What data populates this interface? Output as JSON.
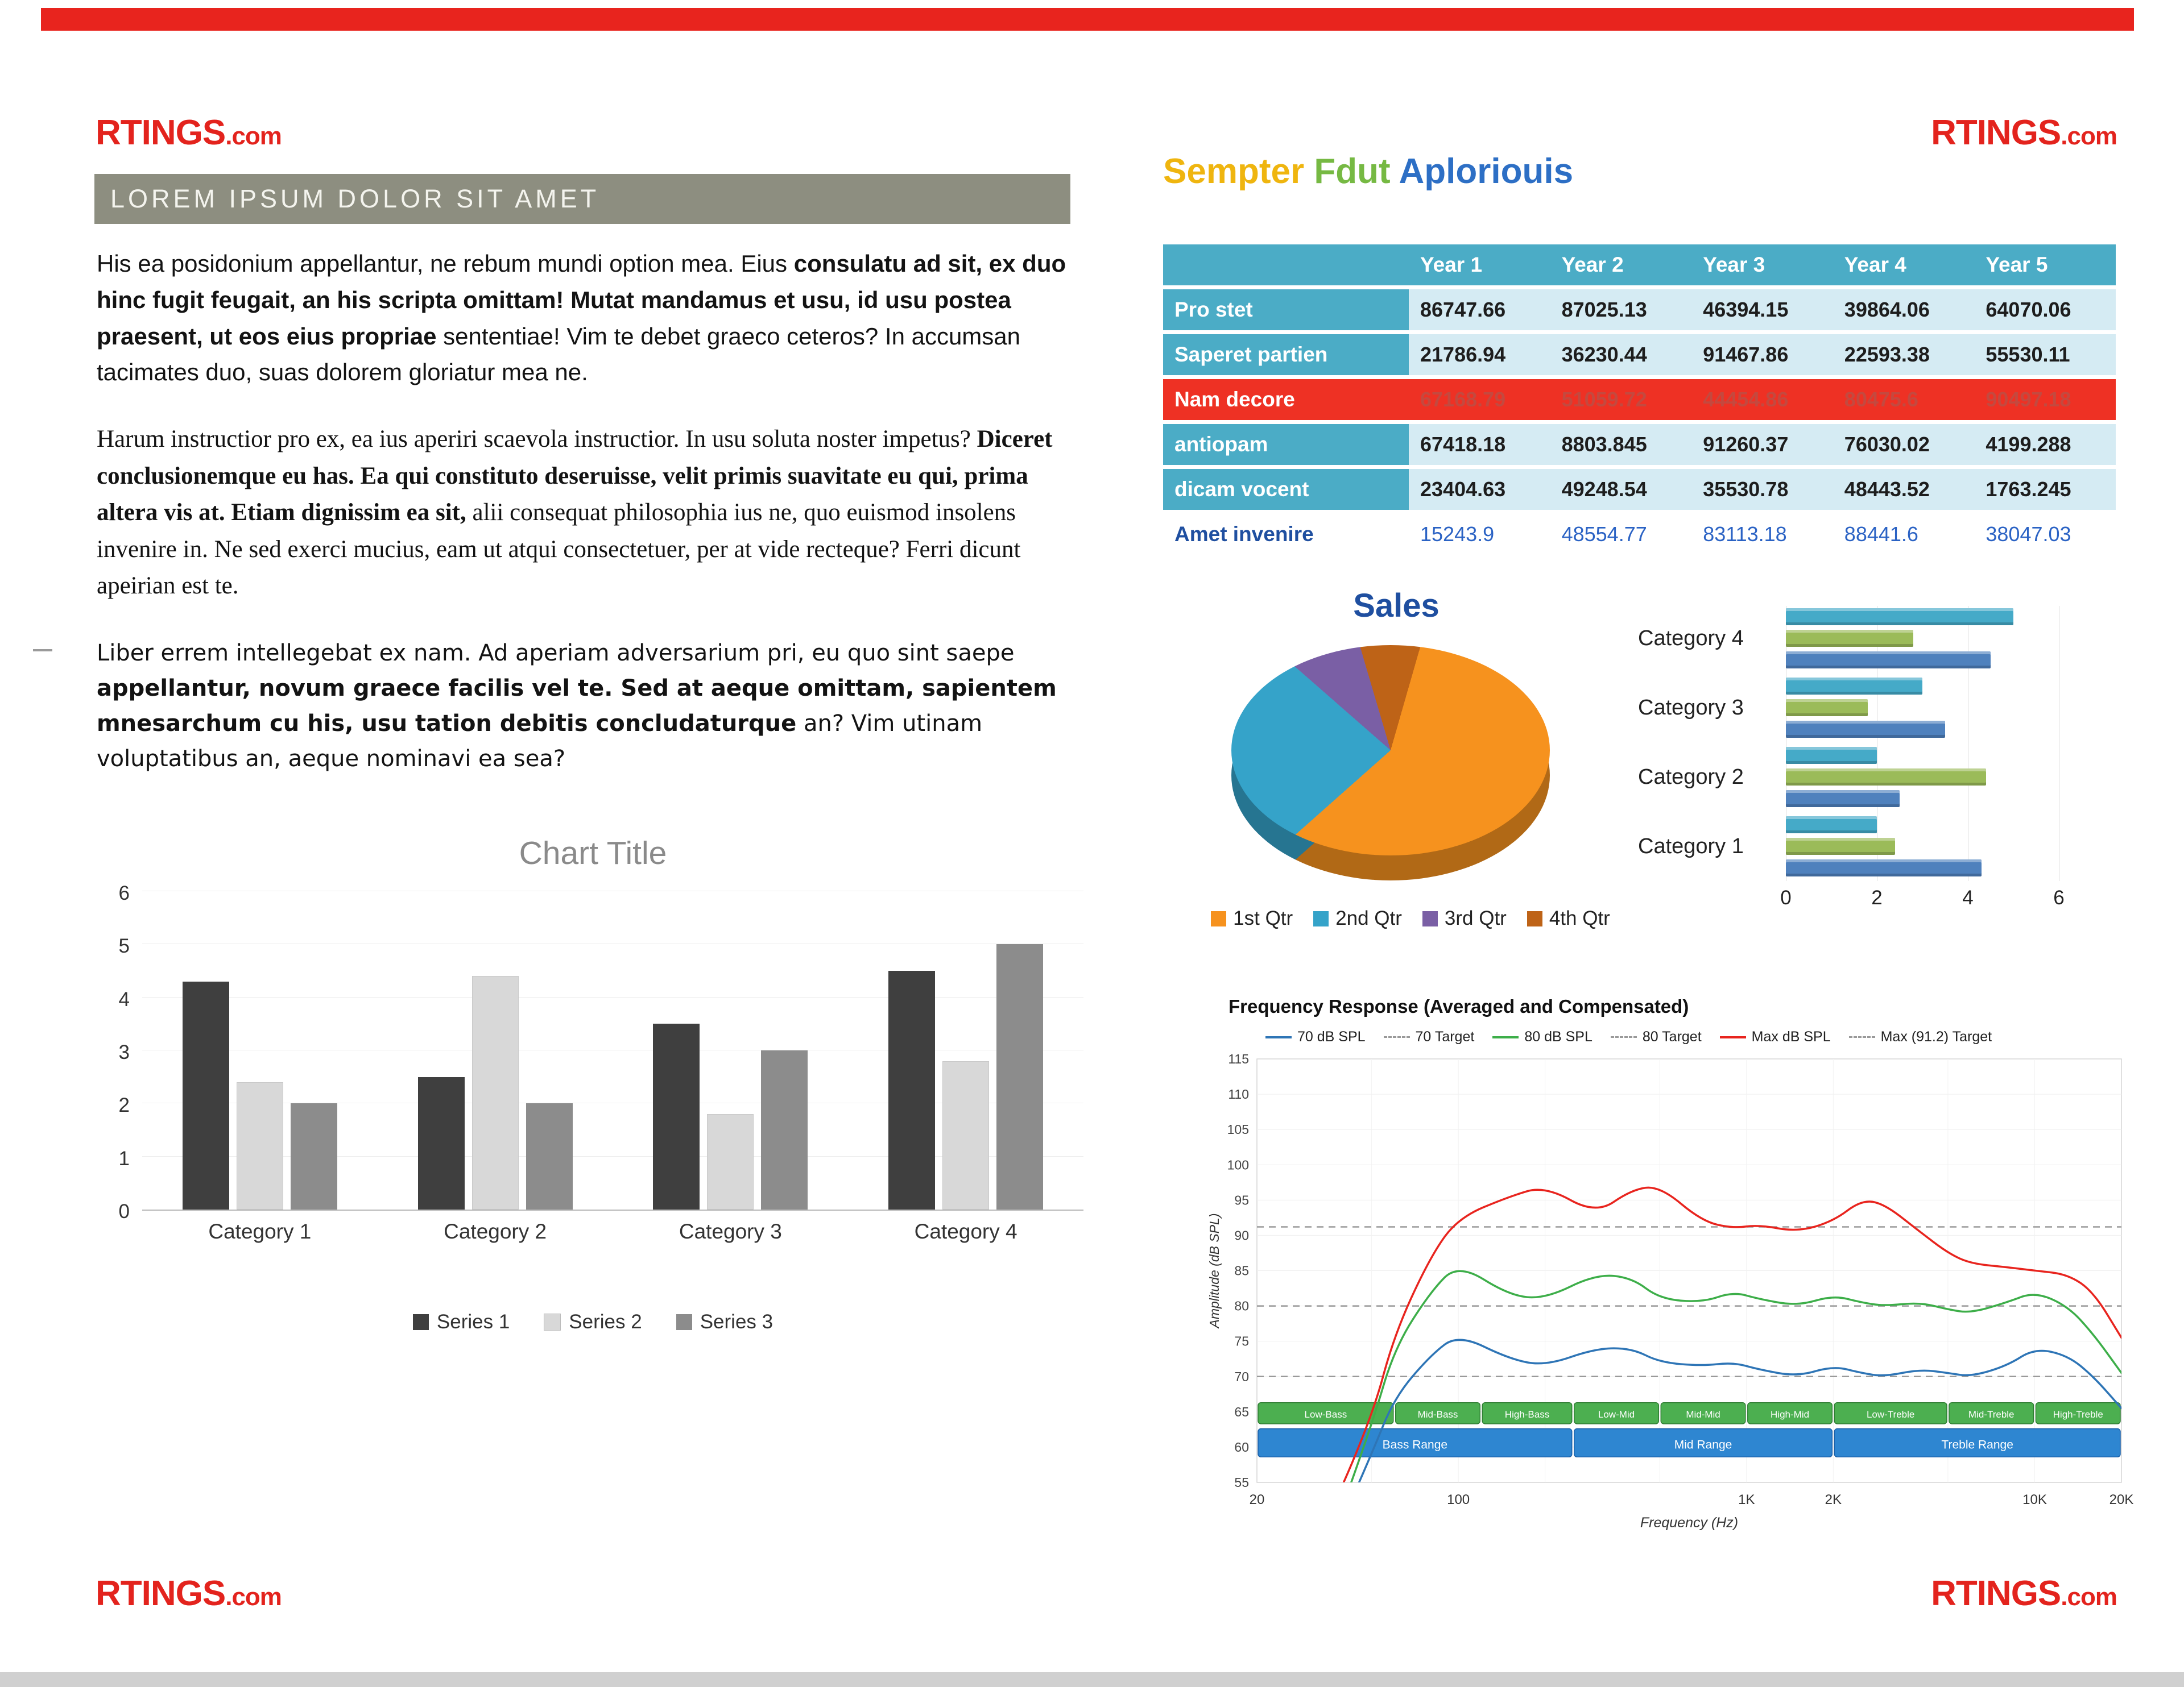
{
  "page": {
    "logo": {
      "main": "RTINGS",
      "suffix": ".com"
    },
    "colors": {
      "accent_red": "#E8241E",
      "table_teal": "#4BACC6",
      "table_red": "#EE3124",
      "heading_blue": "#1F4FA0"
    }
  },
  "left": {
    "header_bar": "LOREM IPSUM DOLOR SIT AMET",
    "paragraphs": [
      [
        {
          "t": "His ea posidonium appellantur, ne rebum mundi option mea. Eius ",
          "b": false
        },
        {
          "t": "consulatu ad sit, ex duo hinc fugit feugait, an his scripta omittam! Mutat mandamus et usu, id usu postea praesent, ut eos eius propriae",
          "b": true
        },
        {
          "t": " sententiae! Vim te debet graeco ceteros? In accumsan tacimates duo, suas dolorem gloriatur mea ne.",
          "b": false
        }
      ],
      [
        {
          "t": "Harum instructior pro ex, ea ius aperiri scaevola instructior. In usu soluta noster impetus? ",
          "b": false
        },
        {
          "t": "Diceret conclusionemque eu has. Ea qui constituto deseruisse, velit primis suavitate eu qui, prima altera vis at. Etiam dignissim ea sit,",
          "b": true
        },
        {
          "t": " alii consequat philosophia ius ne, quo euismod insolens invenire in. Ne sed exerci mucius, eam ut atqui consectetuer, per at vide recteque? Ferri dicunt apeirian est te.",
          "b": false
        }
      ],
      [
        {
          "t": "Liber errem intellegebat ex nam. Ad aperiam adversarium pri, eu quo sint saepe ",
          "b": false
        },
        {
          "t": "appellantur, novum graece facilis vel te. Sed at aeque omittam, sapientem mnesarchum cu his, usu tation debitis concludaturque",
          "b": true
        },
        {
          "t": " an? Vim utinam voluptatibus an, aeque nominavi ea sea?",
          "b": false
        }
      ]
    ]
  },
  "right": {
    "heading": {
      "word1": "Sempter",
      "word2": "Fdut",
      "word3": "Aploriouis"
    },
    "table": {
      "year_headers": [
        "Year 1",
        "Year 2",
        "Year 3",
        "Year 4",
        "Year 5"
      ],
      "rows": [
        {
          "label": "Pro stet",
          "style": "normal",
          "values": [
            "86747.66",
            "87025.13",
            "46394.15",
            "39864.06",
            "64070.06"
          ]
        },
        {
          "label": "Saperet partien",
          "style": "normal",
          "values": [
            "21786.94",
            "36230.44",
            "91467.86",
            "22593.38",
            "55530.11"
          ]
        },
        {
          "label": "Nam decore",
          "style": "red",
          "values": [
            "67168.79",
            "51059.72",
            "44454.86",
            "80475.6",
            "90497.18"
          ]
        },
        {
          "label": "antiopam",
          "style": "normal",
          "values": [
            "67418.18",
            "8803.845",
            "91260.37",
            "76030.02",
            "4199.288"
          ]
        },
        {
          "label": "dicam vocent",
          "style": "normal",
          "values": [
            "23404.63",
            "49248.54",
            "35530.78",
            "48443.52",
            "1763.245"
          ]
        },
        {
          "label": "Amet invenire",
          "style": "blue",
          "values": [
            "15243.9",
            "48554.77",
            "83113.18",
            "88441.6",
            "38047.03"
          ]
        }
      ]
    }
  },
  "chart_data": [
    {
      "id": "left_bar",
      "type": "bar",
      "title": "Chart Title",
      "categories": [
        "Category 1",
        "Category 2",
        "Category 3",
        "Category 4"
      ],
      "series": [
        {
          "name": "Series 1",
          "color": "#3F3F3F",
          "values": [
            4.3,
            2.5,
            3.5,
            4.5
          ]
        },
        {
          "name": "Series 2",
          "color": "#D8D8D8",
          "values": [
            2.4,
            4.4,
            1.8,
            2.8
          ]
        },
        {
          "name": "Series 3",
          "color": "#8C8C8C",
          "values": [
            2,
            2,
            3,
            5
          ]
        }
      ],
      "ylim": [
        0,
        6
      ],
      "yticks": [
        0,
        1,
        2,
        3,
        4,
        5,
        6
      ],
      "grid": true,
      "legend_position": "bottom"
    },
    {
      "id": "sales_pie",
      "type": "pie",
      "title": "Sales",
      "start_angle": 16,
      "slices": [
        {
          "name": "1st Qtr",
          "value": 59,
          "color": "#F6921E"
        },
        {
          "name": "2nd Qtr",
          "value": 23,
          "color": "#35A3C9"
        },
        {
          "name": "3rd Qtr",
          "value": 9,
          "color": "#7A5FA5"
        },
        {
          "name": "4th Qtr",
          "value": 9,
          "color": "#BE6317"
        }
      ],
      "legend_position": "bottom"
    },
    {
      "id": "right_hbar",
      "type": "bar",
      "orientation": "horizontal",
      "categories": [
        "Category 1",
        "Category 2",
        "Category 3",
        "Category 4"
      ],
      "series": [
        {
          "name": "Series 1",
          "color": "#4F81BD",
          "values": [
            4.3,
            2.5,
            3.5,
            4.5
          ]
        },
        {
          "name": "Series 2",
          "color": "#9BBB59",
          "values": [
            2.4,
            4.4,
            1.8,
            2.8
          ]
        },
        {
          "name": "Series 3",
          "color": "#45AAC8",
          "values": [
            2,
            2,
            3,
            5
          ]
        }
      ],
      "xlim": [
        0,
        6
      ],
      "xticks": [
        0,
        2,
        4,
        6
      ],
      "grid": true
    },
    {
      "id": "freq_response",
      "type": "line",
      "title": "Frequency Response (Averaged and Compensated)",
      "xlabel": "Frequency (Hz)",
      "ylabel": "Amplitude (dB SPL)",
      "xscale": "log",
      "xlim": [
        20,
        20000
      ],
      "ylim": [
        55,
        115
      ],
      "yticks": [
        55,
        60,
        65,
        70,
        75,
        80,
        85,
        90,
        95,
        100,
        105,
        110,
        115
      ],
      "xticks": [
        {
          "v": 20,
          "label": "20"
        },
        {
          "v": 100,
          "label": "100"
        },
        {
          "v": 1000,
          "label": "1K"
        },
        {
          "v": 2000,
          "label": "2K"
        },
        {
          "v": 10000,
          "label": "10K"
        },
        {
          "v": 20000,
          "label": "20K"
        }
      ],
      "legend": [
        {
          "label": "70 dB SPL",
          "color": "#2E75B6",
          "dashed": false
        },
        {
          "label": "70 Target",
          "color": "#999999",
          "dashed": true
        },
        {
          "label": "80 dB SPL",
          "color": "#3DAE49",
          "dashed": false
        },
        {
          "label": "80 Target",
          "color": "#999999",
          "dashed": true
        },
        {
          "label": "Max dB SPL",
          "color": "#E8241E",
          "dashed": false
        },
        {
          "label": "Max (91.2) Target",
          "color": "#999999",
          "dashed": true
        }
      ],
      "targets": [
        {
          "label": "70 Target",
          "value": 70
        },
        {
          "label": "80 Target",
          "value": 80
        },
        {
          "label": "Max (91.2) Target",
          "value": 91.2
        }
      ],
      "series": [
        {
          "name": "70 dB SPL",
          "color": "#2E75B6",
          "x": [
            40,
            50,
            60,
            80,
            100,
            150,
            200,
            300,
            400,
            500,
            700,
            900,
            1100,
            1500,
            2000,
            2500,
            3000,
            4000,
            5000,
            6000,
            8000,
            10000,
            13000,
            16000,
            20000
          ],
          "y": [
            50,
            59,
            67,
            73,
            76,
            72.5,
            71.5,
            74,
            74,
            72,
            71.5,
            72,
            71,
            70,
            71.5,
            70.5,
            70,
            71,
            70.5,
            70,
            71.5,
            74,
            73,
            70,
            65.5
          ]
        },
        {
          "name": "80 dB SPL",
          "color": "#3DAE49",
          "x": [
            40,
            50,
            60,
            80,
            100,
            150,
            200,
            300,
            400,
            500,
            700,
            900,
            1100,
            1500,
            2000,
            2500,
            3000,
            4000,
            5000,
            6000,
            8000,
            10000,
            13000,
            16000,
            20000
          ],
          "y": [
            52,
            63,
            74,
            82,
            86,
            81.5,
            81,
            84.5,
            84,
            81,
            80.5,
            82,
            81,
            80,
            81.5,
            80.5,
            80,
            80.5,
            79.5,
            79,
            80.5,
            82,
            80,
            76,
            70.5
          ]
        },
        {
          "name": "Max dB SPL",
          "color": "#E8241E",
          "x": [
            40,
            50,
            60,
            80,
            100,
            150,
            200,
            300,
            400,
            500,
            700,
            900,
            1100,
            1500,
            2000,
            2500,
            3000,
            4000,
            5000,
            6000,
            8000,
            10000,
            13000,
            16000,
            20000
          ],
          "y": [
            55,
            64,
            76,
            87,
            92.5,
            95.5,
            97,
            93,
            96.5,
            97,
            92,
            91,
            91.5,
            90.5,
            92,
            95,
            94.5,
            90.5,
            87.5,
            86,
            85.5,
            85,
            84.5,
            82,
            75.5
          ]
        }
      ],
      "bands": {
        "fine": [
          {
            "label": "Low-Bass",
            "from": 20,
            "to": 60
          },
          {
            "label": "Mid-Bass",
            "from": 60,
            "to": 120
          },
          {
            "label": "High-Bass",
            "from": 120,
            "to": 250
          },
          {
            "label": "Low-Mid",
            "from": 250,
            "to": 500
          },
          {
            "label": "Mid-Mid",
            "from": 500,
            "to": 1000
          },
          {
            "label": "High-Mid",
            "from": 1000,
            "to": 2000
          },
          {
            "label": "Low-Treble",
            "from": 2000,
            "to": 5000
          },
          {
            "label": "Mid-Treble",
            "from": 5000,
            "to": 10000
          },
          {
            "label": "High-Treble",
            "from": 10000,
            "to": 20000
          }
        ],
        "coarse": [
          {
            "label": "Bass Range",
            "from": 20,
            "to": 250
          },
          {
            "label": "Mid Range",
            "from": 250,
            "to": 2000
          },
          {
            "label": "Treble Range",
            "from": 2000,
            "to": 20000
          }
        ]
      }
    }
  ]
}
